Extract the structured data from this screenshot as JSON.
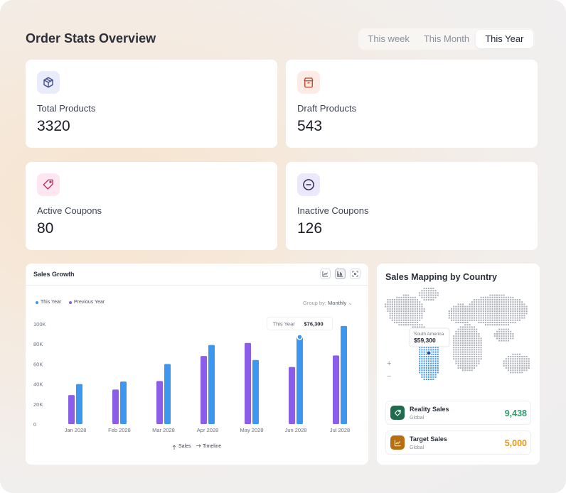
{
  "header": {
    "title": "Order Stats Overview",
    "tabs": [
      {
        "label": "This week",
        "active": false
      },
      {
        "label": "This Month",
        "active": false
      },
      {
        "label": "This Year",
        "active": true
      }
    ]
  },
  "stats": [
    {
      "label": "Total Products",
      "value": "3320",
      "icon": "box-icon",
      "icon_bg": "#e9edfb",
      "icon_color": "#3b4a8f"
    },
    {
      "label": "Draft Products",
      "value": "543",
      "icon": "archive-icon",
      "icon_bg": "#fdebe6",
      "icon_color": "#b5462a"
    },
    {
      "label": "Active Coupons",
      "value": "80",
      "icon": "tag-icon",
      "icon_bg": "#fde6ef",
      "icon_color": "#b83262"
    },
    {
      "label": "Inactive Coupons",
      "value": "126",
      "icon": "minus-circle-icon",
      "icon_bg": "#ece8fb",
      "icon_color": "#4a3b8f"
    }
  ],
  "sales_growth": {
    "title": "Sales Growth",
    "group_by_label": "Group by:",
    "group_by_value": "Monthly",
    "tooltip": {
      "label": "This Year",
      "value": "$76,300"
    },
    "axis_legend": {
      "y": "Sales",
      "x": "Timeline"
    },
    "colors": {
      "this_year": "#3d96f0",
      "previous_year": "#8a5ee8"
    }
  },
  "chart_data": {
    "type": "bar",
    "title": "Sales Growth",
    "categories": [
      "Jan 2028",
      "Feb 2028",
      "Mar 2028",
      "Apr 2028",
      "May 2028",
      "Jun 2028",
      "Jul 2028"
    ],
    "series": [
      {
        "name": "This Year",
        "values": [
          40000,
          42500,
          60000,
          79000,
          64000,
          87000,
          98000
        ]
      },
      {
        "name": "Previous Year",
        "values": [
          29000,
          34500,
          43000,
          68000,
          81000,
          57000,
          68500
        ]
      }
    ],
    "yticks": [
      "100K",
      "80K",
      "60K",
      "40K",
      "20K",
      "0"
    ],
    "ylim": [
      0,
      100000
    ],
    "xlabel": "Timeline",
    "ylabel": "Sales",
    "legend": "top-left",
    "grid": false
  },
  "sales_mapping": {
    "title": "Sales Mapping by Country",
    "map_tooltip": {
      "region": "South America",
      "value": "$59,300"
    },
    "zoom_in": "+",
    "zoom_out": "−",
    "rows": [
      {
        "name": "Reality Sales",
        "sub": "Global",
        "value": "9,438",
        "color": "#2e9e6b",
        "icon": "tag-icon",
        "icon_bg": "#1f6b4e"
      },
      {
        "name": "Target Sales",
        "sub": "Global",
        "value": "5,000",
        "color": "#e6960f",
        "icon": "trend-chart-icon",
        "icon_bg": "#b86e10"
      }
    ]
  }
}
